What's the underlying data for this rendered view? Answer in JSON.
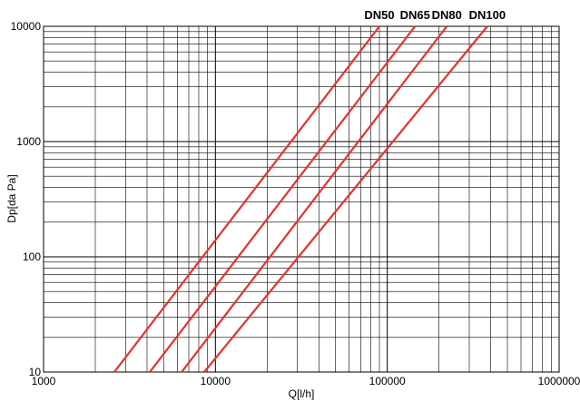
{
  "chart_data": {
    "type": "line",
    "title": "",
    "xlabel": "Q[l/h]",
    "ylabel": "Dp[da Pa]",
    "x_scale": "log",
    "y_scale": "log",
    "xlim": [
      1000,
      1000000
    ],
    "ylim": [
      10,
      10000
    ],
    "grid": true,
    "x_ticks": [
      "1000",
      "10000",
      "100000",
      "1000000"
    ],
    "y_ticks": [
      "10",
      "100",
      "1000",
      "10000"
    ],
    "series_color": "#e8312c",
    "series": [
      {
        "name": "DN50",
        "x": [
          2580,
          90000
        ],
        "y": [
          10,
          10000
        ]
      },
      {
        "name": "DN65",
        "x": [
          4150,
          145000
        ],
        "y": [
          10,
          10000
        ]
      },
      {
        "name": "DN80",
        "x": [
          6360,
          222000
        ],
        "y": [
          10,
          10000
        ]
      },
      {
        "name": "DN100",
        "x": [
          8600,
          382000
        ],
        "y": [
          10,
          10000
        ]
      }
    ]
  }
}
